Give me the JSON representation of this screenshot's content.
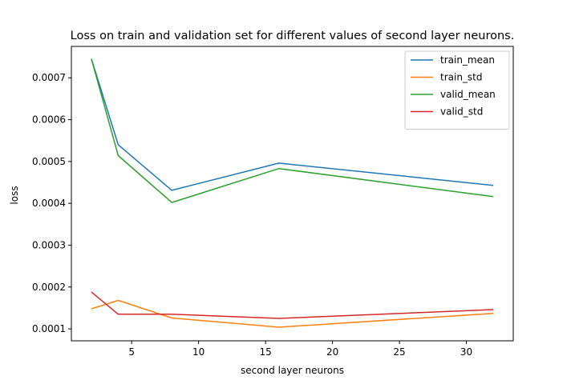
{
  "chart_data": {
    "type": "line",
    "title": "Loss on train and validation set for different values of second layer neurons.",
    "xlabel": "second layer neurons",
    "ylabel": "loss",
    "x": [
      2,
      4,
      8,
      16,
      32
    ],
    "xlim": [
      0.5,
      33.5
    ],
    "ylim": [
      7.15e-05,
      0.000775
    ],
    "xticks": [
      5,
      10,
      15,
      20,
      25,
      30
    ],
    "xtick_labels": [
      "5",
      "10",
      "15",
      "20",
      "25",
      "30"
    ],
    "yticks": [
      0.0001,
      0.0002,
      0.0003,
      0.0004,
      0.0005,
      0.0006,
      0.0007
    ],
    "ytick_labels": [
      "0.0001",
      "0.0002",
      "0.0003",
      "0.0004",
      "0.0005",
      "0.0006",
      "0.0007"
    ],
    "grid": false,
    "legend_position": "top-right",
    "series": [
      {
        "name": "train_mean",
        "color": "#1f77b4",
        "values": [
          0.000745,
          0.00054,
          0.000431,
          0.000496,
          0.000443
        ]
      },
      {
        "name": "train_std",
        "color": "#ff7f0e",
        "values": [
          0.000148,
          0.000168,
          0.000126,
          0.000104,
          0.000137
        ]
      },
      {
        "name": "valid_mean",
        "color": "#2ca02c",
        "values": [
          0.000745,
          0.000514,
          0.000402,
          0.000483,
          0.000416
        ]
      },
      {
        "name": "valid_std",
        "color": "#d62728",
        "values": [
          0.000188,
          0.000135,
          0.000135,
          0.000125,
          0.000146
        ]
      }
    ]
  }
}
